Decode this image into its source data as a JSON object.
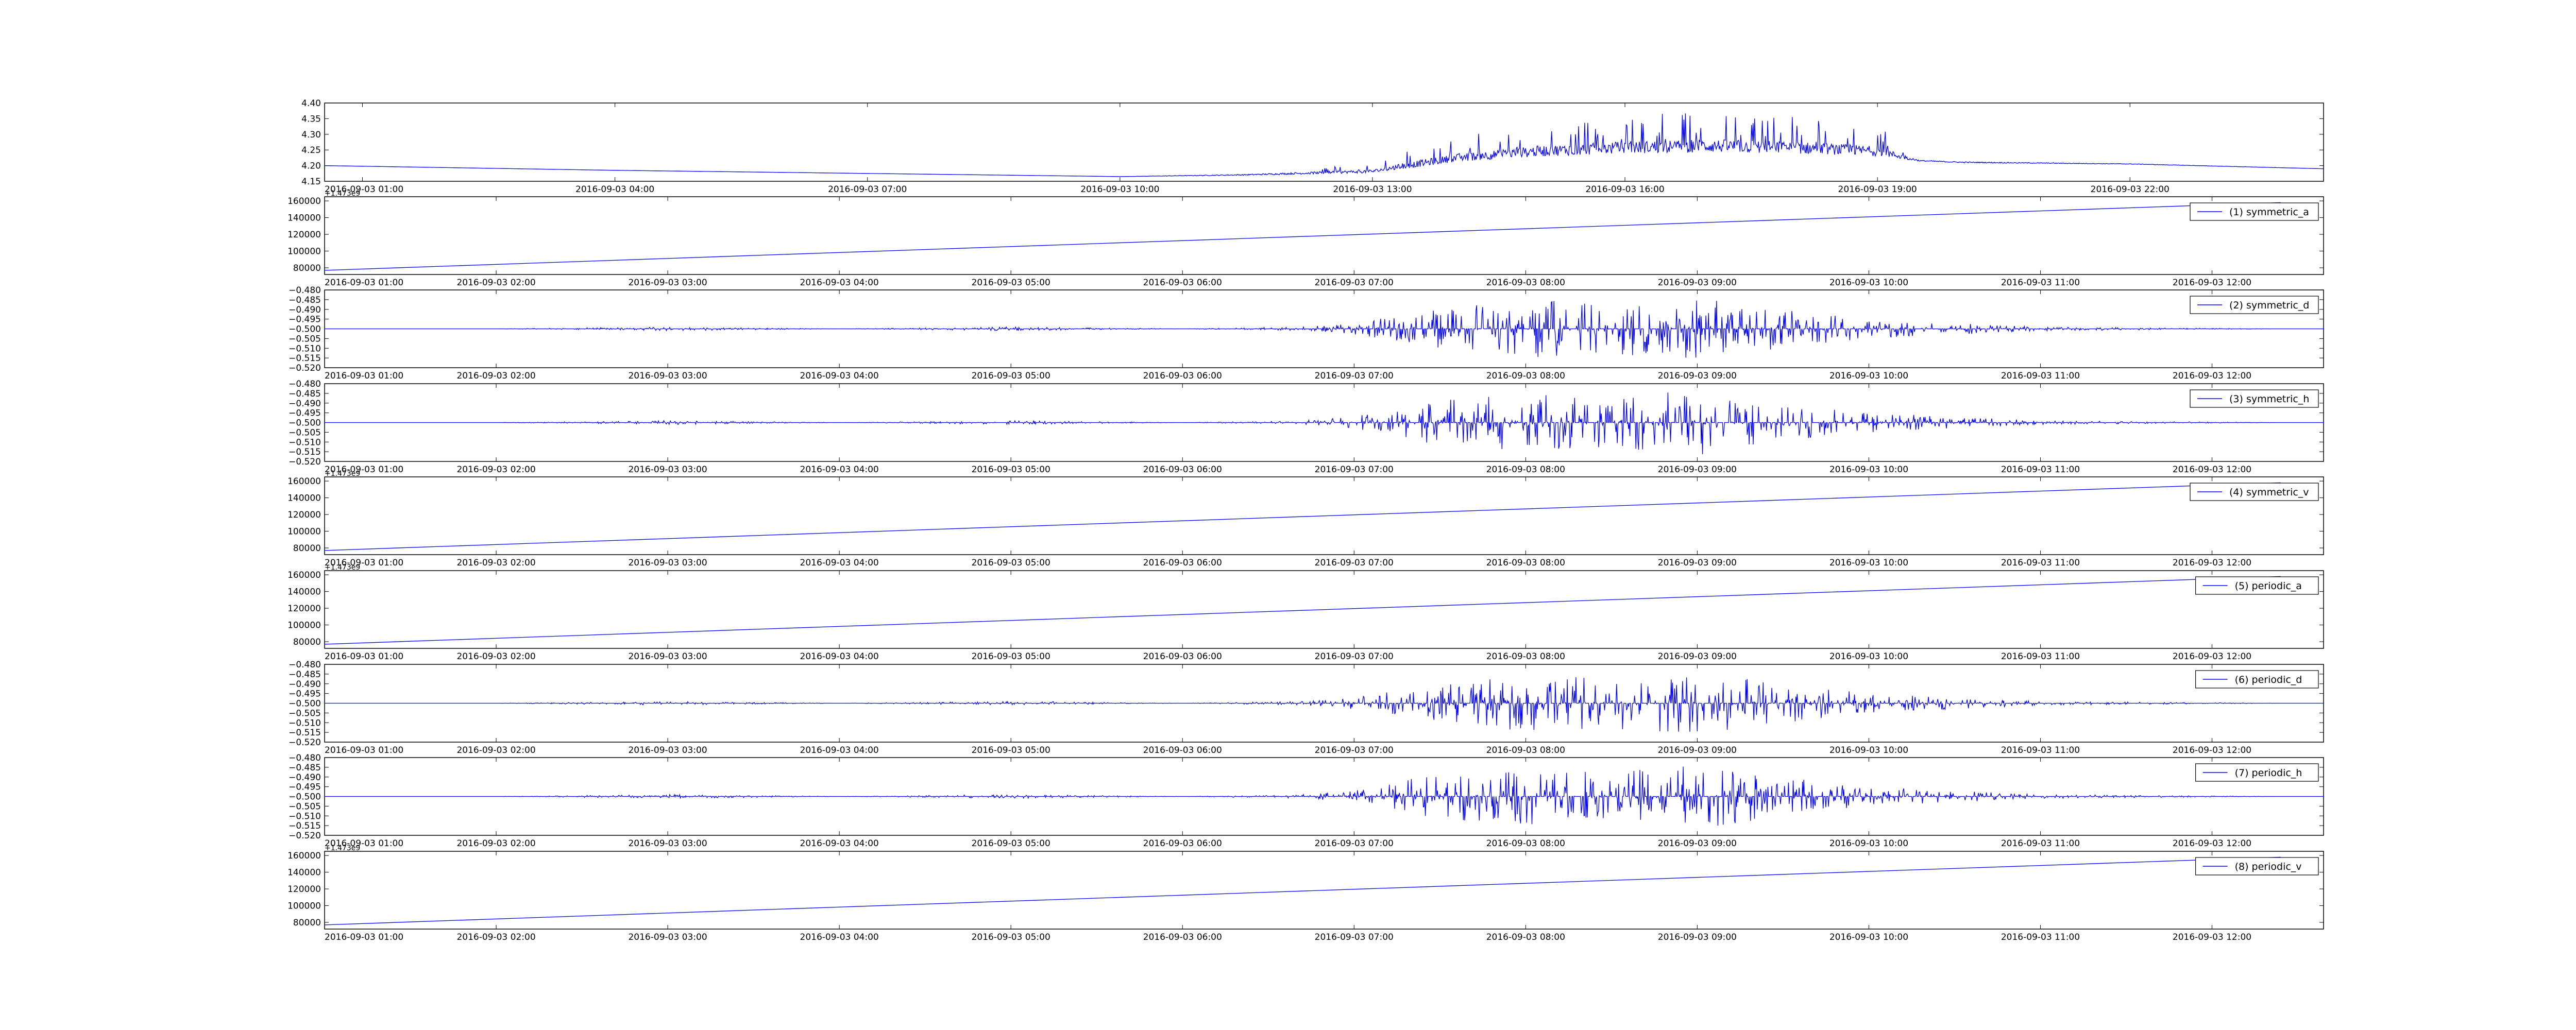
{
  "chart_data": [
    {
      "type": "line",
      "title": "",
      "xlabel": "",
      "ylabel": "",
      "color": "#0000ff",
      "yticks": [
        "4.15",
        "4.20",
        "4.25",
        "4.30",
        "4.35",
        "4.40"
      ],
      "ylim": [
        4.15,
        4.4
      ],
      "xticks": [
        "2016-09-03 01:00",
        "2016-09-03 04:00",
        "2016-09-03 07:00",
        "2016-09-03 10:00",
        "2016-09-03 13:00",
        "2016-09-03 16:00",
        "2016-09-03 19:00",
        "2016-09-03 22:00"
      ],
      "x_hours": [
        0.55,
        24.3
      ],
      "series": [
        {
          "name": "",
          "x": [
            0.55,
            4,
            7,
            10,
            11.5,
            13,
            13.5,
            14,
            15,
            16,
            17,
            18,
            19,
            19.5,
            20,
            22,
            24.3
          ],
          "y": [
            4.2,
            4.185,
            4.175,
            4.165,
            4.17,
            4.18,
            4.2,
            4.22,
            4.24,
            4.25,
            4.255,
            4.25,
            4.24,
            4.215,
            4.21,
            4.205,
            4.19
          ],
          "spike_max": [
            0,
            0,
            0,
            0,
            0.01,
            0.03,
            0.06,
            0.07,
            0.1,
            0.11,
            0.12,
            0.11,
            0.09,
            0.01,
            0.01,
            0.005,
            0
          ]
        }
      ]
    },
    {
      "type": "line",
      "title": "",
      "xlabel": "",
      "ylabel": "",
      "color": "#0000ff",
      "offset_label": "+1.473e9",
      "yticks": [
        "80000",
        "100000",
        "120000",
        "140000",
        "160000"
      ],
      "ylim": [
        72000,
        165000
      ],
      "xticks": [
        "2016-09-03 01:00",
        "2016-09-03 02:00",
        "2016-09-03 03:00",
        "2016-09-03 04:00",
        "2016-09-03 05:00",
        "2016-09-03 06:00",
        "2016-09-03 07:00",
        "2016-09-03 08:00",
        "2016-09-03 09:00",
        "2016-09-03 10:00",
        "2016-09-03 11:00",
        "2016-09-03 12:00"
      ],
      "series": [
        {
          "name": "(1) symmetric_a",
          "x": [
            1.0,
            12.4
          ],
          "y": [
            77000,
            158000
          ]
        }
      ],
      "legend_position": "top-right"
    },
    {
      "type": "line",
      "title": "",
      "xlabel": "",
      "ylabel": "",
      "color": "#0000ff",
      "yticks": [
        "−0.520",
        "−0.515",
        "−0.510",
        "−0.505",
        "−0.500",
        "−0.495",
        "−0.490",
        "−0.485",
        "−0.480"
      ],
      "ylim": [
        -0.52,
        -0.48
      ],
      "xticks": [
        "2016-09-03 01:00",
        "2016-09-03 02:00",
        "2016-09-03 03:00",
        "2016-09-03 04:00",
        "2016-09-03 05:00",
        "2016-09-03 06:00",
        "2016-09-03 07:00",
        "2016-09-03 08:00",
        "2016-09-03 09:00",
        "2016-09-03 10:00",
        "2016-09-03 11:00",
        "2016-09-03 12:00"
      ],
      "series": [
        {
          "name": "(2) symmetric_d",
          "baseline": -0.5,
          "x": [
            1,
            2,
            3,
            4,
            5,
            6,
            6.7,
            7,
            7.5,
            8,
            8.5,
            9,
            9.5,
            10,
            10.5,
            11,
            12.4
          ],
          "spike_max": [
            0,
            0,
            0.001,
            0,
            0.001,
            0,
            0.001,
            0.003,
            0.01,
            0.015,
            0.013,
            0.016,
            0.01,
            0.005,
            0.003,
            0.001,
            0
          ]
        }
      ],
      "legend_position": "top-right"
    },
    {
      "type": "line",
      "title": "",
      "xlabel": "",
      "ylabel": "",
      "color": "#0000ff",
      "yticks": [
        "−0.520",
        "−0.515",
        "−0.510",
        "−0.505",
        "−0.500",
        "−0.495",
        "−0.490",
        "−0.485",
        "−0.480"
      ],
      "ylim": [
        -0.52,
        -0.48
      ],
      "xticks": [
        "2016-09-03 01:00",
        "2016-09-03 02:00",
        "2016-09-03 03:00",
        "2016-09-03 04:00",
        "2016-09-03 05:00",
        "2016-09-03 06:00",
        "2016-09-03 07:00",
        "2016-09-03 08:00",
        "2016-09-03 09:00",
        "2016-09-03 10:00",
        "2016-09-03 11:00",
        "2016-09-03 12:00"
      ],
      "series": [
        {
          "name": "(3) symmetric_h",
          "baseline": -0.5,
          "x": [
            1,
            2,
            3,
            4,
            5,
            6,
            6.7,
            7,
            7.5,
            8,
            8.5,
            9,
            9.5,
            10,
            10.5,
            11,
            12.4
          ],
          "spike_max": [
            0,
            0,
            0.001,
            0,
            0.001,
            0,
            0.001,
            0.003,
            0.012,
            0.015,
            0.013,
            0.017,
            0.01,
            0.005,
            0.003,
            0.001,
            0
          ]
        }
      ],
      "legend_position": "top-right"
    },
    {
      "type": "line",
      "title": "",
      "xlabel": "",
      "ylabel": "",
      "color": "#0000ff",
      "offset_label": "+1.473e9",
      "yticks": [
        "80000",
        "100000",
        "120000",
        "140000",
        "160000"
      ],
      "ylim": [
        72000,
        165000
      ],
      "xticks": [
        "2016-09-03 01:00",
        "2016-09-03 02:00",
        "2016-09-03 03:00",
        "2016-09-03 04:00",
        "2016-09-03 05:00",
        "2016-09-03 06:00",
        "2016-09-03 07:00",
        "2016-09-03 08:00",
        "2016-09-03 09:00",
        "2016-09-03 10:00",
        "2016-09-03 11:00",
        "2016-09-03 12:00"
      ],
      "series": [
        {
          "name": "(4) symmetric_v",
          "x": [
            1.0,
            12.4
          ],
          "y": [
            77000,
            158000
          ]
        }
      ],
      "legend_position": "top-right"
    },
    {
      "type": "line",
      "title": "",
      "xlabel": "",
      "ylabel": "",
      "color": "#0000ff",
      "offset_label": "+1.473e9",
      "yticks": [
        "80000",
        "100000",
        "120000",
        "140000",
        "160000"
      ],
      "ylim": [
        72000,
        165000
      ],
      "xticks": [
        "2016-09-03 01:00",
        "2016-09-03 02:00",
        "2016-09-03 03:00",
        "2016-09-03 04:00",
        "2016-09-03 05:00",
        "2016-09-03 06:00",
        "2016-09-03 07:00",
        "2016-09-03 08:00",
        "2016-09-03 09:00",
        "2016-09-03 10:00",
        "2016-09-03 11:00",
        "2016-09-03 12:00"
      ],
      "series": [
        {
          "name": "(5) periodic_a",
          "x": [
            1.0,
            12.4
          ],
          "y": [
            77000,
            158000
          ]
        }
      ],
      "legend_position": "top-right"
    },
    {
      "type": "line",
      "title": "",
      "xlabel": "",
      "ylabel": "",
      "color": "#0000ff",
      "yticks": [
        "−0.520",
        "−0.515",
        "−0.510",
        "−0.505",
        "−0.500",
        "−0.495",
        "−0.490",
        "−0.485",
        "−0.480"
      ],
      "ylim": [
        -0.52,
        -0.48
      ],
      "xticks": [
        "2016-09-03 01:00",
        "2016-09-03 02:00",
        "2016-09-03 03:00",
        "2016-09-03 04:00",
        "2016-09-03 05:00",
        "2016-09-03 06:00",
        "2016-09-03 07:00",
        "2016-09-03 08:00",
        "2016-09-03 09:00",
        "2016-09-03 10:00",
        "2016-09-03 11:00",
        "2016-09-03 12:00"
      ],
      "series": [
        {
          "name": "(6) periodic_d",
          "baseline": -0.5,
          "x": [
            1,
            2,
            3,
            4,
            5,
            6,
            6.7,
            7,
            7.5,
            8,
            8.5,
            9,
            9.5,
            10,
            10.5,
            11,
            12.4
          ],
          "spike_max": [
            0,
            0,
            0.001,
            0,
            0.001,
            0,
            0.001,
            0.003,
            0.01,
            0.015,
            0.013,
            0.016,
            0.01,
            0.005,
            0.003,
            0.001,
            0
          ]
        }
      ],
      "legend_position": "top-right"
    },
    {
      "type": "line",
      "title": "",
      "xlabel": "",
      "ylabel": "",
      "color": "#0000ff",
      "yticks": [
        "−0.520",
        "−0.515",
        "−0.510",
        "−0.505",
        "−0.500",
        "−0.495",
        "−0.490",
        "−0.485",
        "−0.480"
      ],
      "ylim": [
        -0.52,
        -0.48
      ],
      "xticks": [
        "2016-09-03 01:00",
        "2016-09-03 02:00",
        "2016-09-03 03:00",
        "2016-09-03 04:00",
        "2016-09-03 05:00",
        "2016-09-03 06:00",
        "2016-09-03 07:00",
        "2016-09-03 08:00",
        "2016-09-03 09:00",
        "2016-09-03 10:00",
        "2016-09-03 11:00",
        "2016-09-03 12:00"
      ],
      "series": [
        {
          "name": "(7) periodic_h",
          "baseline": -0.5,
          "x": [
            1,
            2,
            3,
            4,
            5,
            6,
            6.7,
            7,
            7.5,
            8,
            8.5,
            9,
            9.5,
            10,
            10.5,
            11,
            12.4
          ],
          "spike_max": [
            0,
            0,
            0.001,
            0,
            0.001,
            0,
            0.001,
            0.003,
            0.012,
            0.015,
            0.013,
            0.017,
            0.01,
            0.005,
            0.003,
            0.001,
            0
          ]
        }
      ],
      "legend_position": "top-right"
    },
    {
      "type": "line",
      "title": "",
      "xlabel": "",
      "ylabel": "",
      "color": "#0000ff",
      "offset_label": "+1.473e9",
      "yticks": [
        "80000",
        "100000",
        "120000",
        "140000",
        "160000"
      ],
      "ylim": [
        72000,
        165000
      ],
      "xticks": [
        "2016-09-03 01:00",
        "2016-09-03 02:00",
        "2016-09-03 03:00",
        "2016-09-03 04:00",
        "2016-09-03 05:00",
        "2016-09-03 06:00",
        "2016-09-03 07:00",
        "2016-09-03 08:00",
        "2016-09-03 09:00",
        "2016-09-03 10:00",
        "2016-09-03 11:00",
        "2016-09-03 12:00"
      ],
      "series": [
        {
          "name": "(8) periodic_v",
          "x": [
            1.0,
            12.4
          ],
          "y": [
            77000,
            158000
          ]
        }
      ],
      "legend_position": "top-right"
    }
  ]
}
